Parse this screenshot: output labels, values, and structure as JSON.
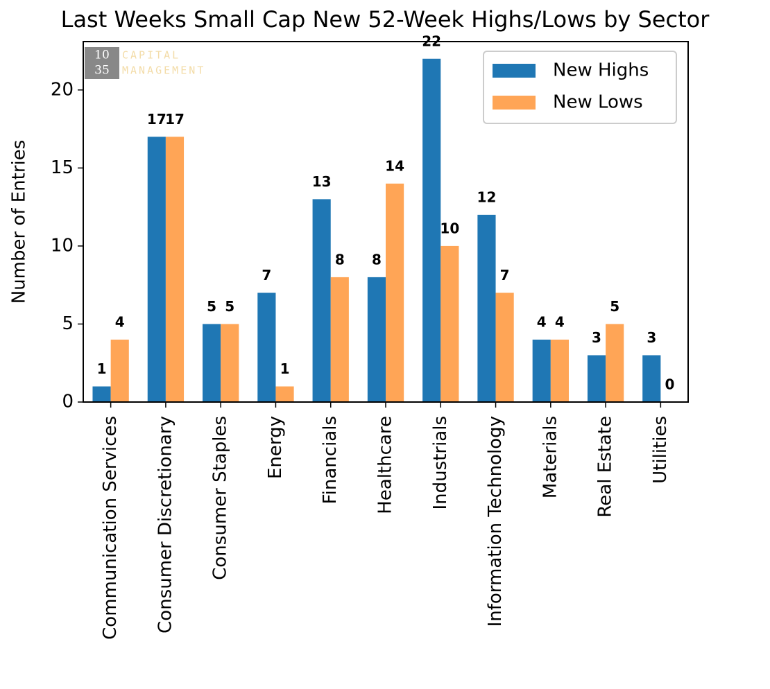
{
  "chart_data": {
    "type": "bar",
    "title": "Last Weeks Small Cap New 52-Week Highs/Lows by Sector",
    "y_label": "Number of Entries",
    "logo": {
      "number_top": "10",
      "number_bottom": "35",
      "text_lines": [
        "CAPITAL",
        "MANAGEMENT"
      ]
    },
    "categories": [
      "Communication Services",
      "Consumer Discretionary",
      "Consumer Staples",
      "Energy",
      "Financials",
      "Healthcare",
      "Industrials",
      "Information Technology",
      "Materials",
      "Real Estate",
      "Utilities"
    ],
    "series": [
      {
        "name": "New Highs",
        "color": "#1f77b4",
        "values": [
          1,
          17,
          5,
          7,
          13,
          8,
          22,
          12,
          4,
          3,
          3
        ]
      },
      {
        "name": "New Lows",
        "color": "#ffa556",
        "values": [
          4,
          17,
          5,
          1,
          8,
          14,
          10,
          7,
          4,
          5,
          0
        ]
      }
    ],
    "ylim": [
      0,
      23.1
    ],
    "yticks": [
      0,
      5,
      10,
      15,
      20
    ],
    "grid": false,
    "legend": "upper right"
  }
}
